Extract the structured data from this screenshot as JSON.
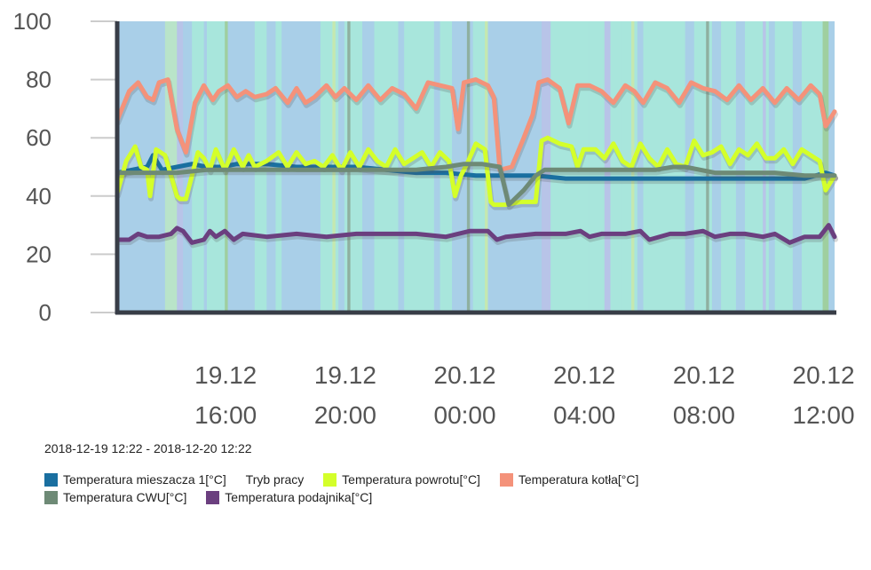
{
  "chart_data": {
    "type": "line",
    "title": "",
    "xlabel": "",
    "ylabel": "",
    "ylim": [
      0,
      100
    ],
    "xlim_hours": [
      0,
      24
    ],
    "y_ticks": [
      "0",
      "20",
      "40",
      "60",
      "80",
      "100"
    ],
    "x_ticks": [
      {
        "date": "19.12",
        "time": "16:00",
        "hour": 3.63
      },
      {
        "date": "19.12",
        "time": "20:00",
        "hour": 7.63
      },
      {
        "date": "20.12",
        "time": "00:00",
        "hour": 11.63
      },
      {
        "date": "20.12",
        "time": "04:00",
        "hour": 15.63
      },
      {
        "date": "20.12",
        "time": "08:00",
        "hour": 19.63
      },
      {
        "date": "20.12",
        "time": "12:00",
        "hour": 23.63
      }
    ],
    "background_band": {
      "name": "Tryb pracy",
      "base_color": "#a9cfe8",
      "bands": [
        {
          "start": 1.6,
          "end": 2.0,
          "color": "#b9e4c9"
        },
        {
          "start": 2.0,
          "end": 2.2,
          "color": "#b8c4e8"
        },
        {
          "start": 2.5,
          "end": 2.9,
          "color": "#a8e6dc"
        },
        {
          "start": 3.0,
          "end": 3.6,
          "color": "#a8e6dc"
        },
        {
          "start": 3.6,
          "end": 3.7,
          "color": "#9fcf9f"
        },
        {
          "start": 4.6,
          "end": 5.0,
          "color": "#a8e6dc"
        },
        {
          "start": 5.3,
          "end": 5.5,
          "color": "#a8e6dc"
        },
        {
          "start": 6.8,
          "end": 7.4,
          "color": "#a8e6dc"
        },
        {
          "start": 7.2,
          "end": 7.3,
          "color": "#c5e8b0"
        },
        {
          "start": 7.6,
          "end": 8.2,
          "color": "#a8e6dc"
        },
        {
          "start": 7.7,
          "end": 7.8,
          "color": "#8fb0a0"
        },
        {
          "start": 8.6,
          "end": 9.4,
          "color": "#a8e6dc"
        },
        {
          "start": 9.6,
          "end": 10.6,
          "color": "#a8e6dc"
        },
        {
          "start": 10.8,
          "end": 11.2,
          "color": "#a8e6dc"
        },
        {
          "start": 11.7,
          "end": 11.8,
          "color": "#8fb0a0"
        },
        {
          "start": 11.9,
          "end": 12.4,
          "color": "#a8e6dc"
        },
        {
          "start": 12.3,
          "end": 12.4,
          "color": "#c5e8b0"
        },
        {
          "start": 14.2,
          "end": 14.5,
          "color": "#b8c4e8"
        },
        {
          "start": 14.5,
          "end": 15.8,
          "color": "#a8e6dc"
        },
        {
          "start": 15.8,
          "end": 16.9,
          "color": "#a8e6dc"
        },
        {
          "start": 16.3,
          "end": 16.5,
          "color": "#b8c4e8"
        },
        {
          "start": 16.9,
          "end": 17.4,
          "color": "#a8e6dc"
        },
        {
          "start": 17.2,
          "end": 17.3,
          "color": "#c5e8b0"
        },
        {
          "start": 17.6,
          "end": 19.0,
          "color": "#a8e6dc"
        },
        {
          "start": 19.3,
          "end": 19.9,
          "color": "#a8e6dc"
        },
        {
          "start": 19.7,
          "end": 19.8,
          "color": "#8fb0a0"
        },
        {
          "start": 20.2,
          "end": 20.7,
          "color": "#a8e6dc"
        },
        {
          "start": 21.0,
          "end": 21.8,
          "color": "#a8e6dc"
        },
        {
          "start": 21.6,
          "end": 21.7,
          "color": "#b8c4e8"
        },
        {
          "start": 22.0,
          "end": 22.6,
          "color": "#a8e6dc"
        },
        {
          "start": 22.9,
          "end": 23.6,
          "color": "#a8e6dc"
        },
        {
          "start": 23.6,
          "end": 23.8,
          "color": "#9fcf9f"
        }
      ]
    },
    "series": [
      {
        "name": "Temperatura mieszacza 1[°C]",
        "color": "#1a6fa0",
        "x": [
          0,
          0.5,
          1.0,
          1.2,
          1.5,
          2.0,
          2.5,
          3.0,
          3.5,
          4.0,
          5.0,
          6.0,
          7.0,
          8.0,
          9.0,
          10.0,
          11.0,
          12.0,
          13.0,
          14.0,
          15.0,
          16.0,
          17.0,
          18.0,
          19.0,
          20.0,
          21.0,
          22.0,
          23.0,
          23.7,
          24.0
        ],
        "values": [
          48,
          49,
          50,
          54,
          49,
          50,
          51,
          50,
          50,
          51,
          51,
          50,
          50,
          50,
          49,
          48,
          48,
          47,
          47,
          47,
          46,
          46,
          46,
          46,
          46,
          46,
          46,
          46,
          46,
          48,
          47
        ]
      },
      {
        "name": "Temperatura powrotu[°C]",
        "color": "#d4ff2a",
        "x": [
          0,
          0.3,
          0.6,
          0.8,
          1.0,
          1.1,
          1.3,
          1.6,
          2.0,
          2.1,
          2.3,
          2.7,
          2.9,
          3.1,
          3.3,
          3.6,
          3.9,
          4.2,
          4.4,
          4.6,
          5.0,
          5.4,
          5.7,
          6.0,
          6.3,
          6.6,
          6.9,
          7.2,
          7.5,
          7.8,
          8.1,
          8.4,
          8.7,
          9.0,
          9.3,
          9.6,
          9.9,
          10.2,
          10.5,
          10.8,
          11.1,
          11.3,
          11.5,
          11.7,
          12.0,
          12.3,
          12.5,
          12.6,
          13.0,
          13.5,
          14.0,
          14.2,
          14.4,
          14.8,
          15.2,
          15.4,
          15.6,
          16.0,
          16.3,
          16.6,
          16.9,
          17.2,
          17.5,
          17.8,
          18.1,
          18.4,
          18.7,
          19.0,
          19.3,
          19.6,
          19.9,
          20.2,
          20.5,
          20.8,
          21.1,
          21.4,
          21.7,
          22.0,
          22.3,
          22.6,
          22.9,
          23.2,
          23.5,
          23.7,
          24.0
        ],
        "values": [
          41,
          52,
          57,
          50,
          49,
          40,
          56,
          54,
          40,
          39,
          39,
          55,
          53,
          49,
          56,
          49,
          56,
          50,
          54,
          50,
          52,
          55,
          50,
          55,
          51,
          52,
          50,
          54,
          49,
          55,
          50,
          56,
          52,
          50,
          56,
          51,
          53,
          55,
          50,
          55,
          52,
          40,
          47,
          51,
          58,
          56,
          38,
          37,
          37,
          38,
          38,
          59,
          60,
          58,
          57,
          50,
          56,
          56,
          53,
          58,
          52,
          50,
          58,
          53,
          50,
          56,
          51,
          50,
          59,
          54,
          55,
          57,
          51,
          56,
          54,
          58,
          53,
          53,
          56,
          51,
          56,
          54,
          52,
          42,
          47
        ]
      },
      {
        "name": "Temperatura kotła[°C]",
        "color": "#f4927a",
        "x": [
          0,
          0.4,
          0.7,
          1.0,
          1.2,
          1.4,
          1.7,
          2.0,
          2.3,
          2.6,
          2.9,
          3.2,
          3.4,
          3.7,
          4.0,
          4.3,
          4.6,
          5.0,
          5.3,
          5.7,
          6.0,
          6.3,
          6.6,
          7.0,
          7.3,
          7.6,
          8.0,
          8.4,
          8.8,
          9.2,
          9.6,
          10.0,
          10.4,
          10.8,
          11.2,
          11.4,
          11.6,
          12.0,
          12.4,
          12.6,
          12.8,
          13.2,
          13.6,
          13.9,
          14.1,
          14.4,
          14.8,
          15.1,
          15.4,
          15.8,
          16.2,
          16.6,
          17.0,
          17.3,
          17.6,
          18.0,
          18.4,
          18.8,
          19.2,
          19.6,
          20.0,
          20.4,
          20.8,
          21.2,
          21.6,
          22.0,
          22.4,
          22.8,
          23.2,
          23.5,
          23.7,
          24.0
        ],
        "values": [
          66,
          76,
          79,
          74,
          73,
          79,
          80,
          63,
          55,
          72,
          78,
          73,
          76,
          78,
          74,
          76,
          74,
          75,
          77,
          72,
          77,
          72,
          74,
          78,
          74,
          77,
          73,
          78,
          73,
          77,
          75,
          70,
          79,
          78,
          77,
          63,
          79,
          80,
          78,
          74,
          49,
          50,
          60,
          68,
          79,
          80,
          77,
          65,
          78,
          78,
          76,
          72,
          78,
          76,
          72,
          79,
          77,
          72,
          79,
          77,
          76,
          73,
          78,
          73,
          77,
          72,
          77,
          73,
          78,
          75,
          64,
          69
        ]
      },
      {
        "name": "Temperatura CWU[°C]",
        "color": "#6e8a76",
        "x": [
          0,
          1.0,
          2.0,
          3.0,
          4.0,
          5.0,
          6.0,
          7.0,
          8.0,
          9.0,
          10.0,
          11.0,
          11.6,
          12.2,
          12.8,
          13.1,
          13.6,
          14.0,
          14.3,
          15.0,
          16.0,
          17.0,
          18.0,
          18.6,
          19.0,
          20.0,
          21.0,
          22.0,
          23.0,
          24.0
        ],
        "values": [
          48,
          48,
          48,
          49,
          49,
          49,
          49,
          49,
          49,
          49,
          49,
          50,
          51,
          51,
          50,
          37,
          42,
          47,
          49,
          49,
          49,
          49,
          49,
          50,
          50,
          48,
          48,
          48,
          47,
          47
        ]
      },
      {
        "name": "Temperatura podajnika[°C]",
        "color": "#6b3f7f",
        "x": [
          0,
          0.4,
          0.7,
          1.0,
          1.4,
          1.8,
          2.0,
          2.2,
          2.5,
          2.9,
          3.1,
          3.3,
          3.6,
          3.9,
          4.2,
          5.0,
          6.0,
          7.0,
          8.0,
          9.0,
          10.0,
          11.0,
          11.8,
          12.4,
          12.7,
          13.0,
          14.0,
          15.0,
          15.5,
          15.8,
          16.2,
          17.0,
          17.5,
          17.8,
          18.5,
          19.0,
          19.6,
          20.0,
          20.5,
          21.0,
          21.6,
          22.0,
          22.5,
          23.0,
          23.5,
          23.8,
          24.0
        ],
        "values": [
          25,
          25,
          27,
          26,
          26,
          27,
          29,
          28,
          24,
          25,
          28,
          26,
          28,
          25,
          27,
          26,
          27,
          26,
          27,
          27,
          27,
          26,
          28,
          28,
          25,
          26,
          27,
          27,
          28,
          26,
          27,
          27,
          28,
          25,
          27,
          27,
          28,
          26,
          27,
          27,
          26,
          27,
          24,
          26,
          26,
          30,
          26
        ]
      }
    ]
  },
  "date_range": "2018-12-19 12:22 - 2018-12-20 12:22",
  "legend": [
    {
      "label": "Temperatura mieszacza 1[°C]",
      "color": "#1a6fa0"
    },
    {
      "label": "Tryb pracy",
      "color": ""
    },
    {
      "label": "Temperatura powrotu[°C]",
      "color": "#d4ff2a"
    },
    {
      "label": "Temperatura kotła[°C]",
      "color": "#f4927a"
    },
    {
      "label": "Temperatura CWU[°C]",
      "color": "#6e8a76"
    },
    {
      "label": "Temperatura podajnika[°C]",
      "color": "#6b3f7f"
    }
  ]
}
